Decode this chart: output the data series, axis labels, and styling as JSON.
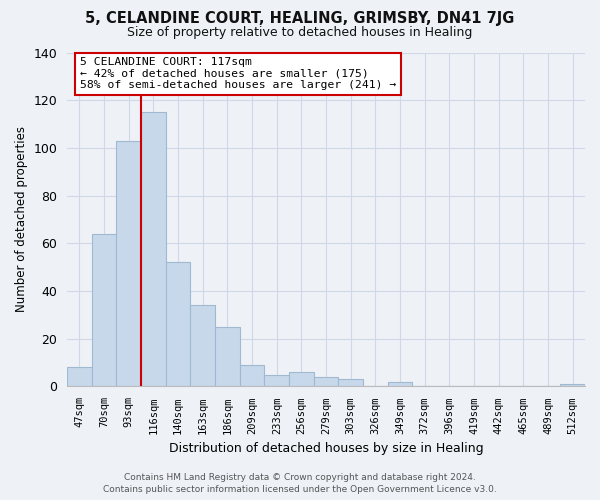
{
  "title": "5, CELANDINE COURT, HEALING, GRIMSBY, DN41 7JG",
  "subtitle": "Size of property relative to detached houses in Healing",
  "xlabel": "Distribution of detached houses by size in Healing",
  "ylabel": "Number of detached properties",
  "bar_labels": [
    "47sqm",
    "70sqm",
    "93sqm",
    "116sqm",
    "140sqm",
    "163sqm",
    "186sqm",
    "209sqm",
    "233sqm",
    "256sqm",
    "279sqm",
    "303sqm",
    "326sqm",
    "349sqm",
    "372sqm",
    "396sqm",
    "419sqm",
    "442sqm",
    "465sqm",
    "489sqm",
    "512sqm"
  ],
  "bar_values": [
    8,
    64,
    103,
    115,
    52,
    34,
    25,
    9,
    5,
    6,
    4,
    3,
    0,
    2,
    0,
    0,
    0,
    0,
    0,
    0,
    1
  ],
  "bar_color": "#c8d8eb",
  "bar_edge_color": "#a0b8d0",
  "vline_color": "#cc0000",
  "annotation_title": "5 CELANDINE COURT: 117sqm",
  "annotation_line1": "← 42% of detached houses are smaller (175)",
  "annotation_line2": "58% of semi-detached houses are larger (241) →",
  "annotation_box_color": "#ffffff",
  "annotation_box_edge": "#cc0000",
  "ylim": [
    0,
    140
  ],
  "yticks": [
    0,
    20,
    40,
    60,
    80,
    100,
    120,
    140
  ],
  "footer_line1": "Contains HM Land Registry data © Crown copyright and database right 2024.",
  "footer_line2": "Contains public sector information licensed under the Open Government Licence v3.0.",
  "background_color": "#eef2f7",
  "grid_color": "#d0d8e8"
}
